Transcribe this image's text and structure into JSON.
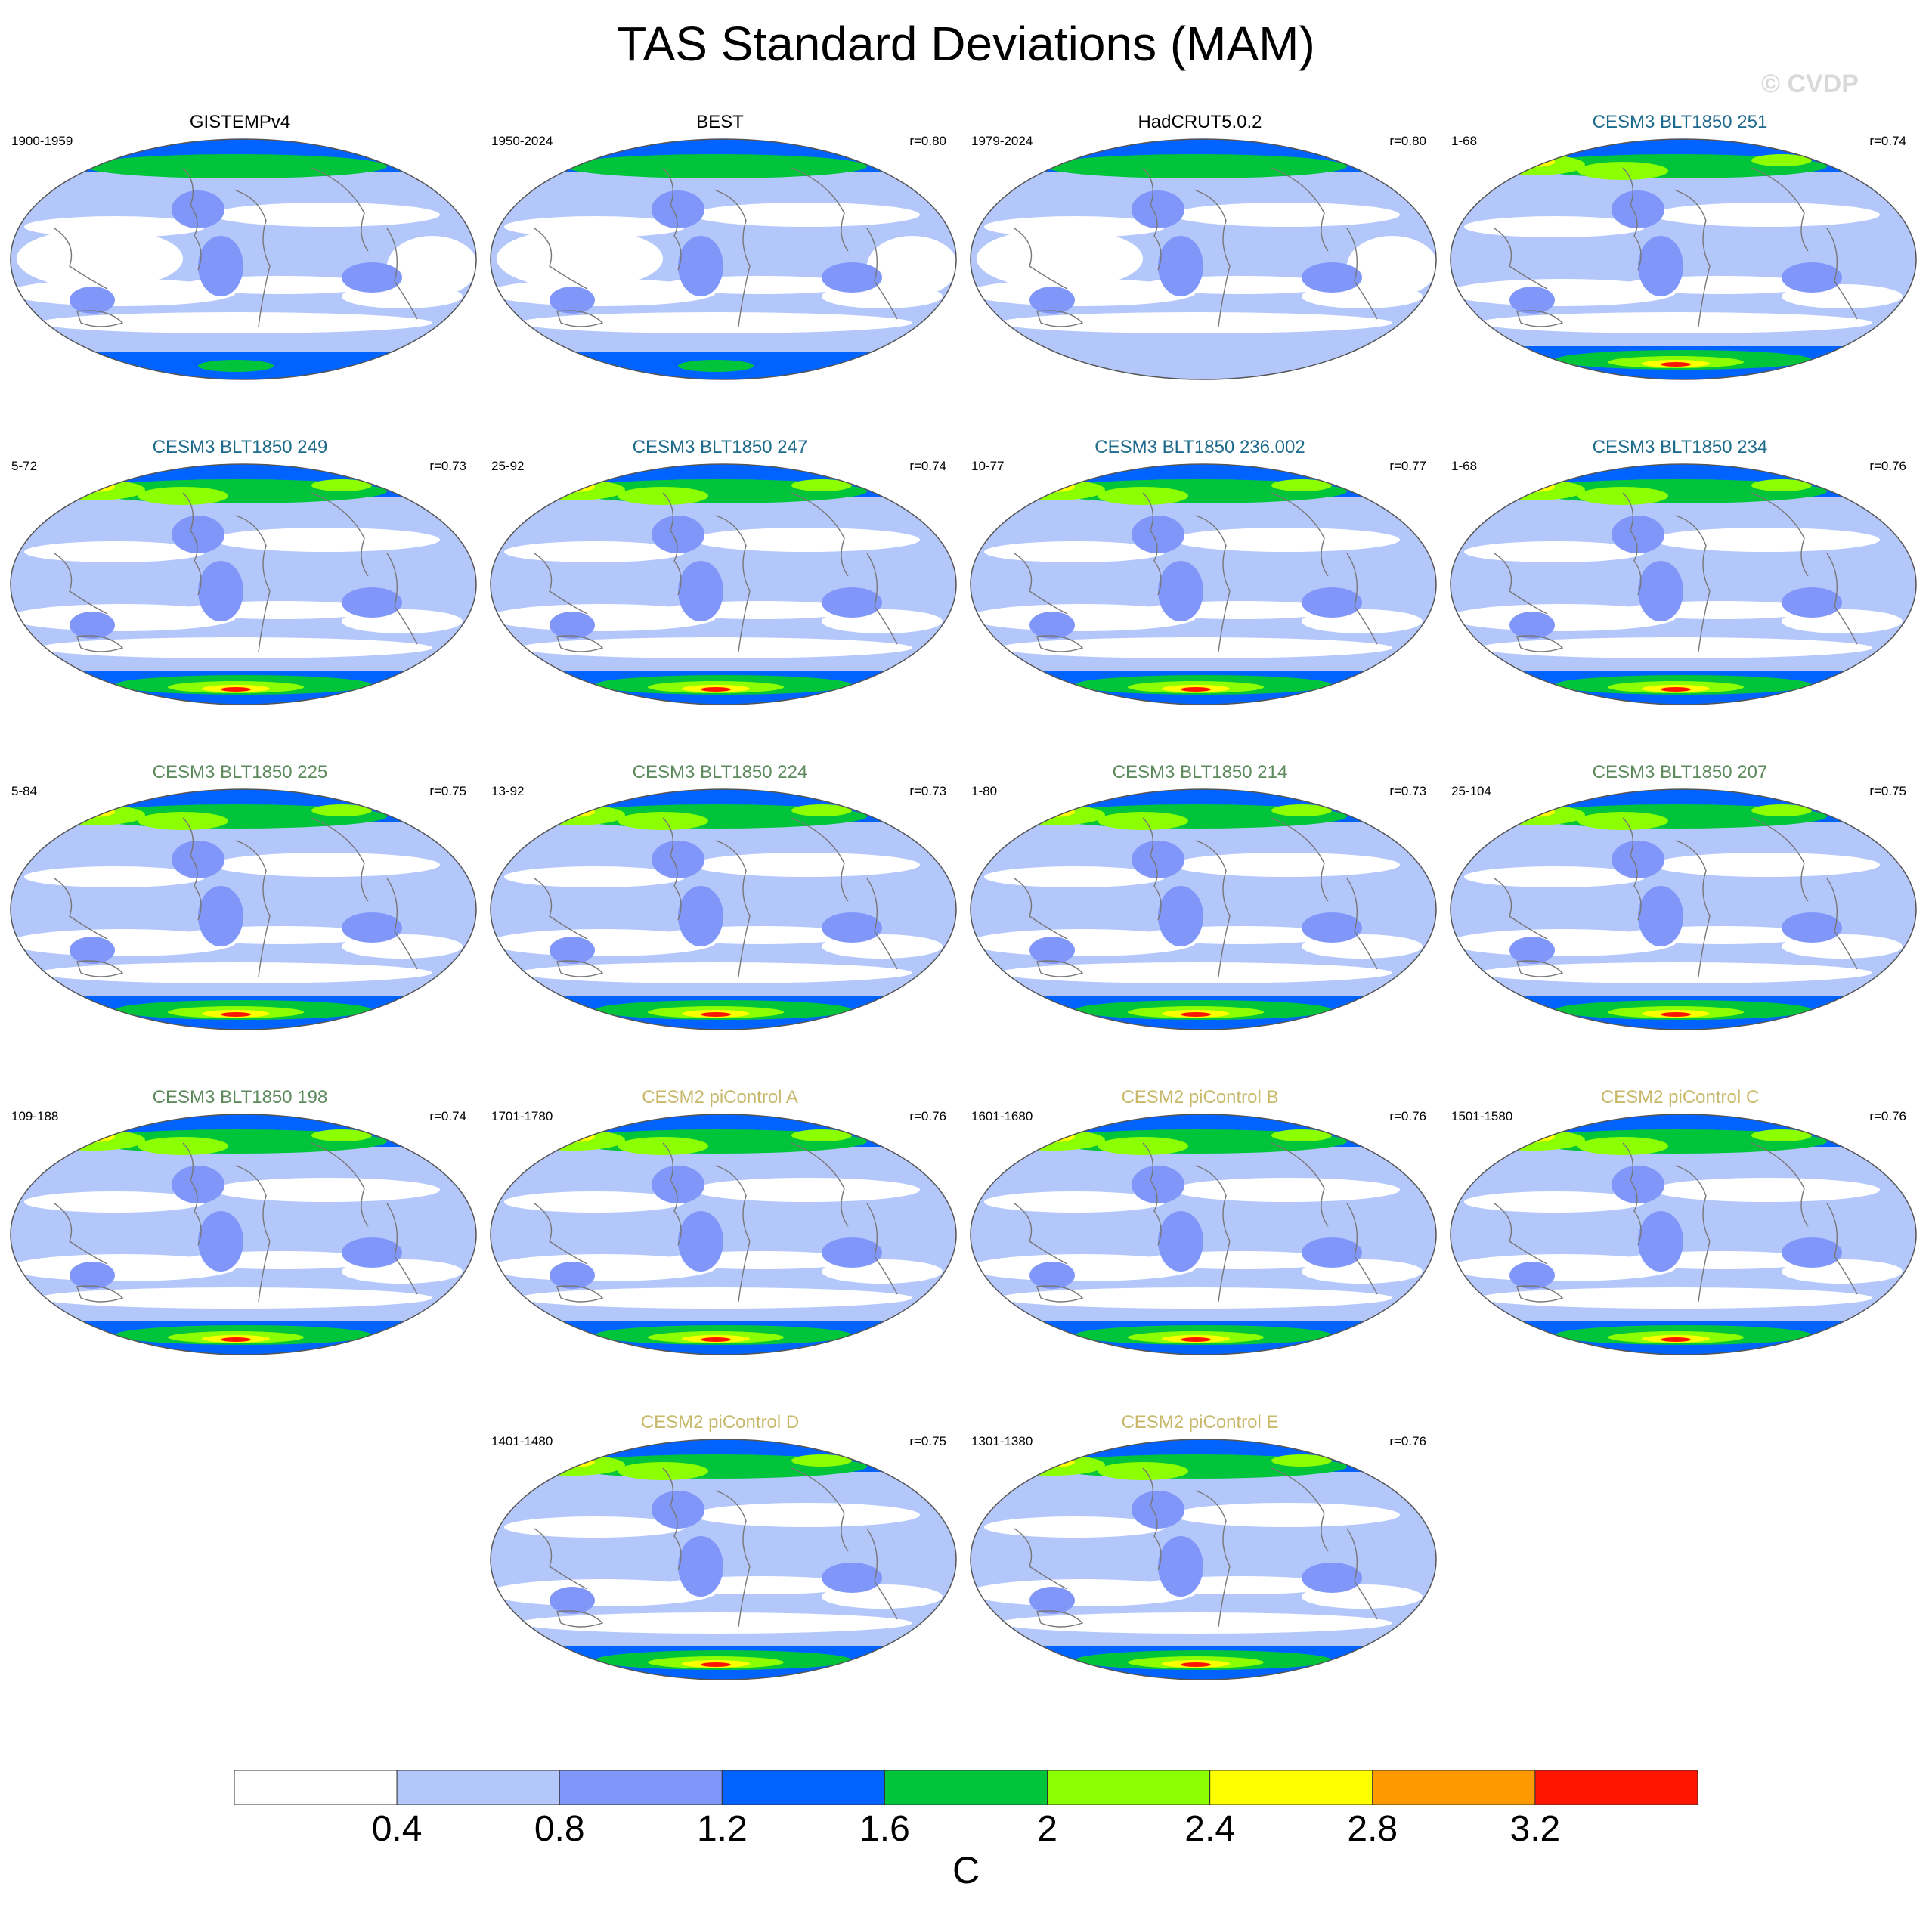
{
  "title": "TAS Standard Deviations (MAM)",
  "credit": "© CVDP",
  "colors": {
    "levels": [
      "#ffffff",
      "#b4c7fb",
      "#8096f8",
      "#0062ff",
      "#00c53a",
      "#8cff00",
      "#ffff00",
      "#ff9900",
      "#ff1600"
    ],
    "coast": "#777777",
    "title_obs": "#000000",
    "title_cesm3_a": "#1e6a8c",
    "title_cesm3_b": "#5d8a5d",
    "title_cesm2": "#c8b86a"
  },
  "panels": [
    {
      "title": "GISTEMPv4",
      "period": "1900-1959",
      "r": "",
      "group": "obs"
    },
    {
      "title": "BEST",
      "period": "1950-2024",
      "r": "r=0.80",
      "group": "obs"
    },
    {
      "title": "HadCRUT5.0.2",
      "period": "1979-2024",
      "r": "r=0.80",
      "group": "obs"
    },
    {
      "title": "CESM3 BLT1850 251",
      "period": "1-68",
      "r": "r=0.74",
      "group": "cesm3_a"
    },
    {
      "title": "CESM3 BLT1850 249",
      "period": "5-72",
      "r": "r=0.73",
      "group": "cesm3_a"
    },
    {
      "title": "CESM3 BLT1850 247",
      "period": "25-92",
      "r": "r=0.74",
      "group": "cesm3_a"
    },
    {
      "title": "CESM3 BLT1850 236.002",
      "period": "10-77",
      "r": "r=0.77",
      "group": "cesm3_a"
    },
    {
      "title": "CESM3 BLT1850 234",
      "period": "1-68",
      "r": "r=0.76",
      "group": "cesm3_a"
    },
    {
      "title": "CESM3 BLT1850 225",
      "period": "5-84",
      "r": "r=0.75",
      "group": "cesm3_b"
    },
    {
      "title": "CESM3 BLT1850 224",
      "period": "13-92",
      "r": "r=0.73",
      "group": "cesm3_b"
    },
    {
      "title": "CESM3 BLT1850 214",
      "period": "1-80",
      "r": "r=0.73",
      "group": "cesm3_b"
    },
    {
      "title": "CESM3 BLT1850 207",
      "period": "25-104",
      "r": "r=0.75",
      "group": "cesm3_b"
    },
    {
      "title": "CESM3 BLT1850 198",
      "period": "109-188",
      "r": "r=0.74",
      "group": "cesm3_b"
    },
    {
      "title": "CESM2 piControl A",
      "period": "1701-1780",
      "r": "r=0.76",
      "group": "cesm2"
    },
    {
      "title": "CESM2 piControl B",
      "period": "1601-1680",
      "r": "r=0.76",
      "group": "cesm2"
    },
    {
      "title": "CESM2 piControl C",
      "period": "1501-1580",
      "r": "r=0.76",
      "group": "cesm2"
    },
    {
      "title": "CESM2 piControl D",
      "period": "1401-1480",
      "r": "r=0.75",
      "group": "cesm2"
    },
    {
      "title": "CESM2 piControl E",
      "period": "1301-1380",
      "r": "r=0.76",
      "group": "cesm2"
    }
  ],
  "colorbar": {
    "ticks": [
      "0.4",
      "0.8",
      "1.2",
      "1.6",
      "2",
      "2.4",
      "2.8",
      "3.2"
    ],
    "unit": "C"
  }
}
